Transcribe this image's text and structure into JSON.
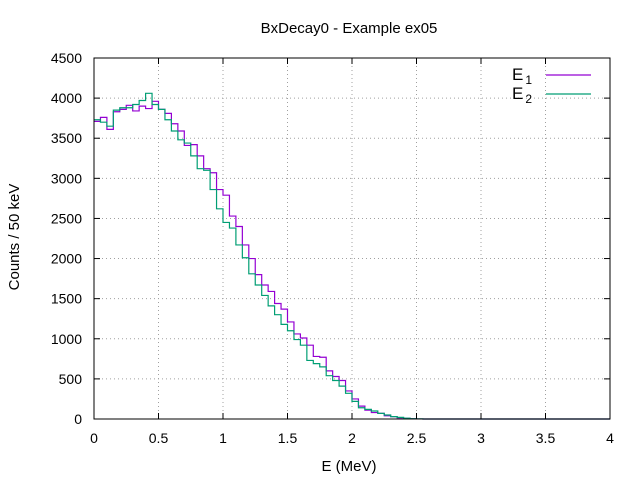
{
  "chart_data": {
    "type": "line",
    "title": "BxDecay0 - Example ex05",
    "xlabel": "E (MeV)",
    "ylabel": "Counts / 50 keV",
    "xlim": [
      0,
      4
    ],
    "ylim": [
      0,
      4500
    ],
    "x_ticks": [
      "0",
      "0.5",
      "1",
      "1.5",
      "2",
      "2.5",
      "3",
      "3.5",
      "4"
    ],
    "y_ticks": [
      "0",
      "500",
      "1000",
      "1500",
      "2000",
      "2500",
      "3000",
      "3500",
      "4000",
      "4500"
    ],
    "grid": true,
    "legend_position": "top-right",
    "bin_width": 0.05,
    "series": [
      {
        "name": "E",
        "subscript": "1",
        "color": "#9400d3",
        "values": [
          3710,
          3760,
          3610,
          3830,
          3860,
          3910,
          3840,
          3900,
          3870,
          3960,
          3860,
          3810,
          3680,
          3590,
          3410,
          3420,
          3280,
          3120,
          3070,
          2860,
          2790,
          2530,
          2400,
          2170,
          2000,
          1800,
          1670,
          1590,
          1440,
          1370,
          1210,
          1060,
          1010,
          920,
          780,
          770,
          600,
          530,
          480,
          350,
          250,
          160,
          110,
          80,
          70,
          40,
          30,
          15,
          8,
          3,
          1,
          0,
          0,
          0,
          0,
          0,
          0,
          0,
          0,
          0,
          0,
          0,
          0,
          0,
          0,
          0,
          0,
          0,
          0,
          0,
          0,
          0,
          0,
          0,
          0,
          0,
          0,
          0,
          0,
          0
        ]
      },
      {
        "name": "E",
        "subscript": "2",
        "color": "#009e73",
        "values": [
          3730,
          3700,
          3650,
          3850,
          3880,
          3880,
          3920,
          3970,
          4060,
          3920,
          3860,
          3730,
          3590,
          3480,
          3440,
          3280,
          3120,
          3100,
          2860,
          2620,
          2450,
          2380,
          2170,
          2010,
          1810,
          1670,
          1540,
          1410,
          1300,
          1180,
          1100,
          990,
          920,
          730,
          690,
          650,
          540,
          480,
          410,
          320,
          220,
          140,
          120,
          100,
          70,
          50,
          30,
          20,
          10,
          4,
          2,
          0,
          0,
          0,
          0,
          0,
          0,
          0,
          0,
          0,
          0,
          0,
          0,
          0,
          0,
          0,
          0,
          0,
          0,
          0,
          0,
          0,
          0,
          0,
          0,
          0,
          0,
          0,
          0,
          0
        ]
      }
    ]
  }
}
